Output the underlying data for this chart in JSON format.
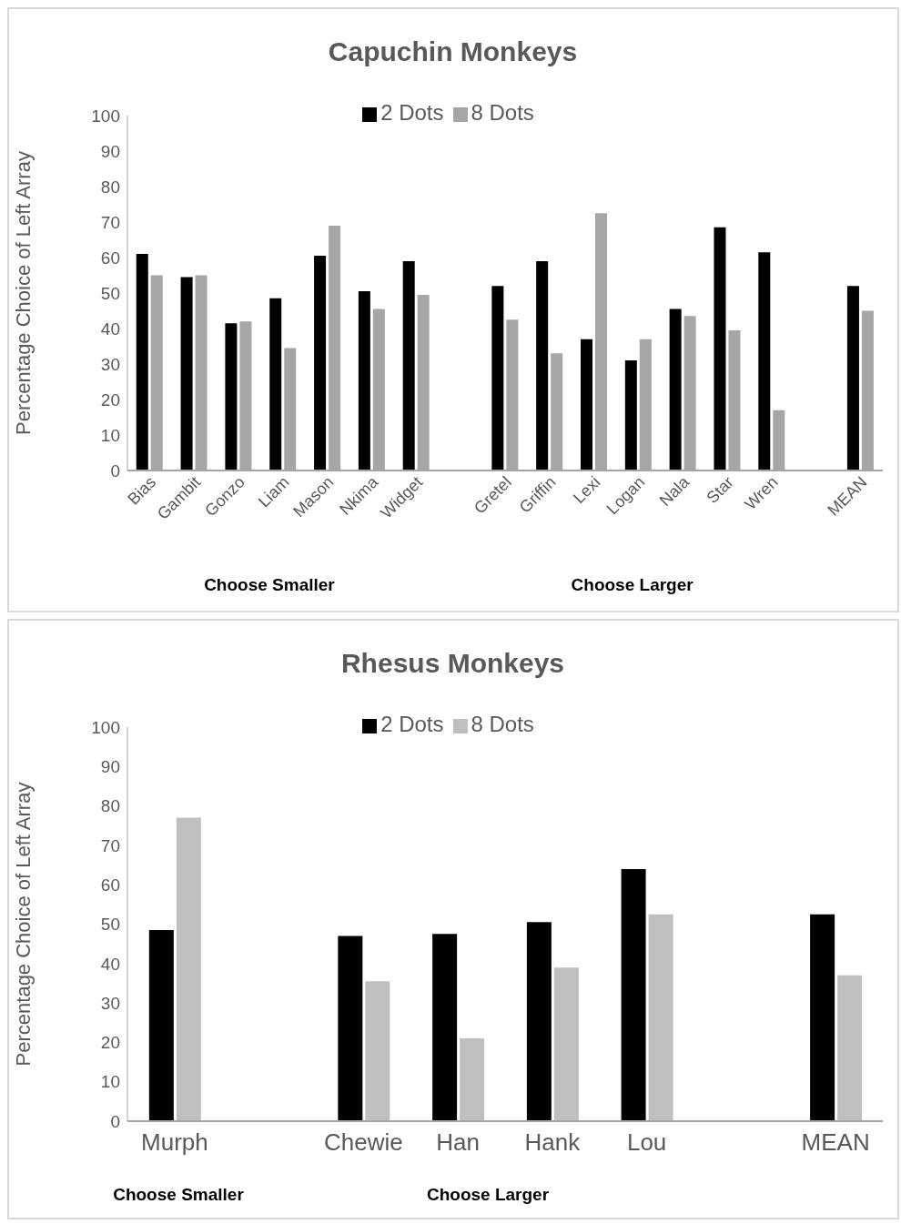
{
  "chart_data": [
    {
      "type": "bar",
      "title": "Capuchin Monkeys",
      "ylabel": "Percentage Choice of Left Array",
      "categories": [
        "Bias",
        "Gambit",
        "Gonzo",
        "Liam",
        "Mason",
        "Nkima",
        "Widget",
        null,
        "Gretel",
        "Griffin",
        "Lexi",
        "Logan",
        "Nala",
        "Star",
        "Wren",
        null,
        "MEAN"
      ],
      "series": [
        {
          "name": "2 Dots",
          "color": "#000000",
          "values": [
            61,
            54.5,
            41.5,
            48.5,
            60.5,
            50.5,
            59,
            null,
            52,
            59,
            37,
            31,
            45.5,
            68.5,
            61.5,
            null,
            52
          ]
        },
        {
          "name": "8 Dots",
          "color": "#a6a6a6",
          "values": [
            55,
            55,
            42,
            34.5,
            69,
            45.5,
            49.5,
            null,
            42.5,
            33,
            72.5,
            37,
            43.5,
            39.5,
            17,
            null,
            45
          ]
        }
      ],
      "ylim": [
        0,
        100
      ],
      "yticks": [
        0,
        10,
        20,
        30,
        40,
        50,
        60,
        70,
        80,
        90,
        100
      ],
      "grid": false,
      "legend": "top",
      "annotations": [
        "Choose Smaller",
        "Choose Larger"
      ]
    },
    {
      "type": "bar",
      "title": "Rhesus Monkeys",
      "ylabel": "Percentage Choice of Left Array",
      "categories": [
        "Murph",
        null,
        "Chewie",
        "Han",
        "Hank",
        "Lou",
        null,
        "MEAN"
      ],
      "series": [
        {
          "name": "2 Dots",
          "color": "#000000",
          "values": [
            48.5,
            null,
            47,
            47.5,
            50.5,
            64,
            null,
            52.5
          ]
        },
        {
          "name": "8 Dots",
          "color": "#bfbfbf",
          "values": [
            77,
            null,
            35.5,
            21,
            39,
            52.5,
            null,
            37
          ]
        }
      ],
      "ylim": [
        0,
        100
      ],
      "yticks": [
        0,
        10,
        20,
        30,
        40,
        50,
        60,
        70,
        80,
        90,
        100
      ],
      "grid": false,
      "legend": "top",
      "annotations": [
        "Choose Smaller",
        "Choose Larger"
      ]
    }
  ]
}
